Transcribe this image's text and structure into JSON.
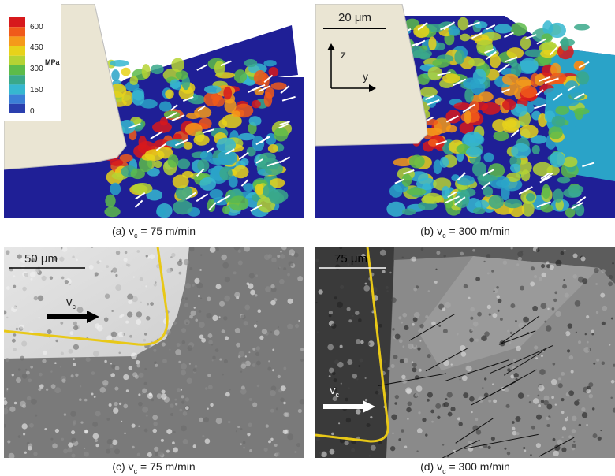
{
  "panel_a": {
    "colorbar": {
      "ticks": [
        "600",
        "450",
        "300",
        "150",
        "0"
      ],
      "unit": "MPa"
    },
    "caption": {
      "prefix": "(a) v",
      "sub": "c",
      "suffix": " = 75 m/min"
    }
  },
  "panel_b": {
    "scale_bar": "20 μm",
    "axis_z": "z",
    "axis_y": "y",
    "caption": {
      "prefix": "(b) v",
      "sub": "c",
      "suffix": " = 300 m/min"
    }
  },
  "panel_c": {
    "scale_bar": "50 μm",
    "arrow_label": {
      "main": "v",
      "sub": "c"
    },
    "caption": {
      "prefix": "(c) v",
      "sub": "c",
      "suffix": " = 75 m/min"
    }
  },
  "panel_d": {
    "scale_bar": "75 μm",
    "arrow_label": {
      "main": "v",
      "sub": "c"
    },
    "caption": {
      "prefix": "(d) v",
      "sub": "c",
      "suffix": " = 300 m/min"
    }
  }
}
